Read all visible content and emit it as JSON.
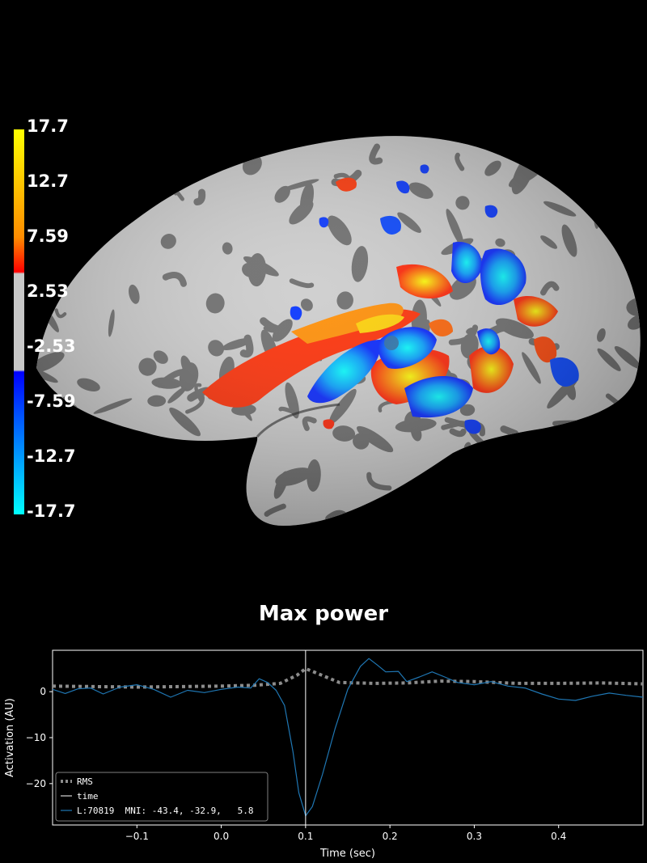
{
  "brain": {
    "colorbar": {
      "labels": [
        "17.7",
        "12.7",
        "7.59",
        "2.53",
        "-2.53",
        "-7.59",
        "-12.7",
        "-17.7"
      ],
      "colors": {
        "max_pos": "#ffff00",
        "mid_pos": "#ff0000",
        "threshold": "#c8c8c8",
        "mid_neg": "#0000ff",
        "max_neg": "#00ffff"
      }
    },
    "surface_colors": {
      "sulci": "#6a6a6a",
      "gyri": "#cccccc"
    }
  },
  "plot": {
    "title": "Max power"
  },
  "chart_data": {
    "type": "line",
    "xlabel": "Time (sec)",
    "ylabel": "Activation (AU)",
    "xlim": [
      -0.2,
      0.5
    ],
    "ylim": [
      -29,
      9
    ],
    "xticks": [
      -0.1,
      0.0,
      0.1,
      0.2,
      0.3,
      0.4
    ],
    "xtick_labels": [
      "−0.1",
      "0.0",
      "0.1",
      "0.2",
      "0.3",
      "0.4"
    ],
    "yticks": [
      0,
      -10,
      -20
    ],
    "ytick_labels": [
      "0",
      "−10",
      "−20"
    ],
    "grid": false,
    "legend_position": "lower-left",
    "time_marker": 0.1,
    "series": [
      {
        "name": "RMS",
        "style": "dotted",
        "color": "#8c8c8c",
        "x": [
          -0.2,
          -0.15,
          -0.1,
          -0.05,
          0.0,
          0.04,
          0.07,
          0.09,
          0.1,
          0.115,
          0.14,
          0.18,
          0.22,
          0.26,
          0.3,
          0.35,
          0.4,
          0.45,
          0.5
        ],
        "y": [
          1.2,
          1.1,
          1.0,
          1.1,
          1.2,
          1.4,
          1.8,
          3.6,
          5.0,
          3.9,
          2.0,
          1.8,
          1.9,
          2.3,
          2.2,
          1.8,
          1.8,
          1.9,
          1.7
        ]
      },
      {
        "name": "L:70819  MNI: -43.4, -32.9,   5.8",
        "style": "solid",
        "color": "#1f77b4",
        "x": [
          -0.2,
          -0.185,
          -0.17,
          -0.155,
          -0.14,
          -0.12,
          -0.1,
          -0.08,
          -0.06,
          -0.04,
          -0.02,
          0.0,
          0.02,
          0.035,
          0.045,
          0.055,
          0.065,
          0.075,
          0.085,
          0.092,
          0.1,
          0.108,
          0.12,
          0.135,
          0.15,
          0.165,
          0.175,
          0.185,
          0.195,
          0.21,
          0.22,
          0.235,
          0.25,
          0.265,
          0.28,
          0.3,
          0.32,
          0.34,
          0.36,
          0.38,
          0.4,
          0.42,
          0.44,
          0.46,
          0.48,
          0.5
        ],
        "y": [
          0.5,
          -0.4,
          0.6,
          0.8,
          -0.5,
          1.0,
          1.5,
          0.5,
          -1.2,
          0.3,
          -0.2,
          0.5,
          1.0,
          0.8,
          2.8,
          2.0,
          0.3,
          -3.0,
          -13.0,
          -22.0,
          -27.0,
          -25.0,
          -18.0,
          -8.0,
          0.5,
          5.5,
          7.2,
          5.8,
          4.3,
          4.4,
          2.2,
          3.2,
          4.3,
          3.2,
          2.0,
          1.5,
          2.2,
          1.2,
          0.8,
          -0.5,
          -1.6,
          -1.9,
          -1.0,
          -0.3,
          -0.8,
          -1.2
        ]
      }
    ],
    "time_legend": {
      "name": "time",
      "color": "#ffffff"
    }
  }
}
